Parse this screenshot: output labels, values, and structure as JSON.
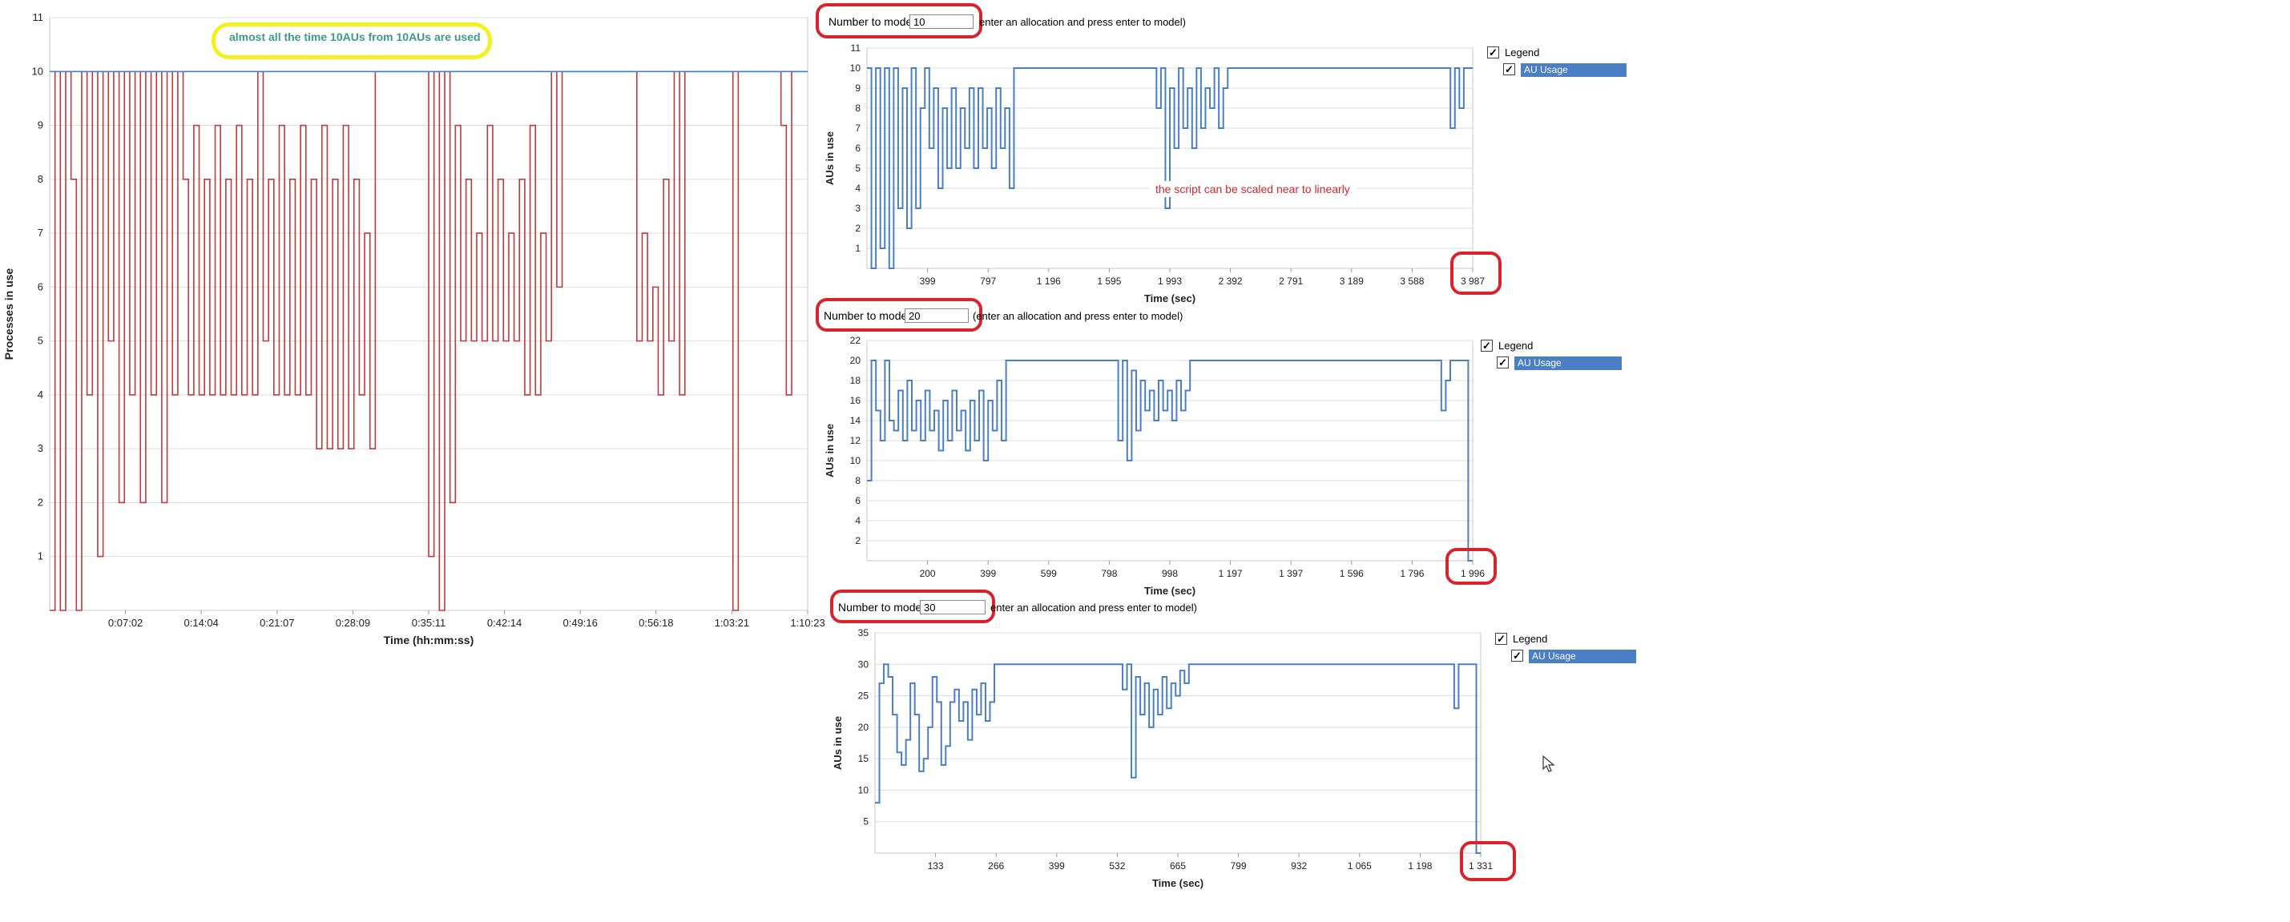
{
  "left_chart": {
    "annotation": "almost all the time 10AUs from 10AUs are used",
    "chart_data": {
      "type": "line",
      "xlabel": "Time (hh:mm:ss)",
      "ylabel": "Processes in use",
      "x_tick_labels": [
        "0:07:02",
        "0:14:04",
        "0:21:07",
        "0:28:09",
        "0:35:11",
        "0:42:14",
        "0:49:16",
        "0:56:18",
        "1:03:21",
        "1:10:23"
      ],
      "y_ticks": [
        1,
        2,
        3,
        4,
        5,
        6,
        7,
        8,
        9,
        10,
        11
      ],
      "ylim": [
        0,
        11
      ],
      "series": [
        {
          "color": "#c0393b",
          "values": [
            0,
            10,
            0,
            10,
            8,
            0,
            10,
            4,
            10,
            1,
            10,
            5,
            10,
            2,
            10,
            4,
            10,
            2,
            10,
            4,
            10,
            2,
            10,
            4,
            10,
            8,
            4,
            9,
            4,
            8,
            4,
            9,
            4,
            8,
            4,
            9,
            4,
            8,
            4,
            10,
            5,
            8,
            4,
            9,
            4,
            8,
            4,
            9,
            4,
            8,
            3,
            9,
            3,
            8,
            3,
            9,
            3,
            8,
            4,
            7,
            3,
            10,
            10,
            10,
            10,
            10,
            10,
            10,
            10,
            10,
            10,
            1,
            10,
            0,
            10,
            2,
            9,
            5,
            8,
            5,
            7,
            5,
            9,
            5,
            8,
            5,
            7,
            5,
            8,
            4,
            9,
            4,
            7,
            5,
            10,
            6,
            10,
            10,
            10,
            10,
            10,
            10,
            10,
            10,
            10,
            10,
            10,
            10,
            10,
            10,
            5,
            7,
            5,
            6,
            4,
            8,
            5,
            10,
            4,
            10,
            10,
            10,
            10,
            10,
            10,
            10,
            10,
            10,
            0,
            10,
            10,
            10,
            10,
            10,
            10,
            10,
            10,
            9,
            4,
            10,
            10,
            10
          ]
        },
        {
          "color": "#4a7fc6",
          "values": [
            10,
            10,
            10,
            10,
            10,
            10,
            10,
            10,
            10,
            10,
            10,
            10,
            10,
            10,
            10,
            10,
            10,
            10,
            10,
            10,
            10,
            10,
            10,
            10,
            10,
            10,
            10,
            10,
            10,
            10,
            10,
            10,
            10,
            10,
            10,
            10,
            10,
            10,
            10,
            10,
            10,
            10,
            10,
            10,
            10,
            10,
            10,
            10,
            10,
            10,
            10,
            10,
            10,
            10,
            10,
            10,
            10,
            10,
            10,
            10,
            10,
            10,
            10,
            10,
            10,
            10,
            10,
            10,
            10,
            10,
            10,
            10,
            10,
            10,
            10,
            10,
            10,
            10,
            10,
            10,
            10,
            10,
            10,
            10,
            10,
            10,
            10,
            10,
            10,
            10,
            10,
            10,
            10,
            10,
            10,
            10,
            10,
            10,
            10,
            10,
            10,
            10,
            10,
            10,
            10,
            10,
            10,
            10,
            10,
            10,
            10,
            10,
            10,
            10,
            10,
            10,
            10,
            10,
            10,
            10,
            10,
            10,
            10,
            10,
            10,
            10,
            10,
            10,
            10,
            10,
            10,
            10,
            10,
            10,
            10,
            10,
            10,
            10,
            10,
            10,
            10,
            10
          ]
        }
      ]
    }
  },
  "panels": [
    {
      "number_label": "Number to model:",
      "number_value": "10",
      "hint": "enter an allocation and press enter to model)",
      "legend_title": "Legend",
      "legend_item": "AU Usage",
      "annotation": "the script can be scaled near to linearly",
      "chart_data": {
        "type": "line",
        "xlabel": "Time (sec)",
        "ylabel": "AUs in use",
        "x_tick_labels": [
          "399",
          "797",
          "1 196",
          "1 595",
          "1 993",
          "2 392",
          "2 791",
          "3 189",
          "3 588",
          "3 987"
        ],
        "y_ticks": [
          1,
          2,
          3,
          4,
          5,
          6,
          7,
          8,
          9,
          10,
          11
        ],
        "ylim": [
          0,
          11
        ],
        "series": [
          {
            "name": "AU Usage",
            "color": "#4a7fc6",
            "values": [
              10,
              0,
              10,
              1,
              10,
              0,
              10,
              3,
              9,
              2,
              10,
              3,
              8,
              10,
              6,
              9,
              4,
              8,
              5,
              9,
              5,
              8,
              6,
              9,
              5,
              9,
              6,
              8,
              5,
              9,
              6,
              8,
              4,
              10,
              10,
              10,
              10,
              10,
              10,
              10,
              10,
              10,
              10,
              10,
              10,
              10,
              10,
              10,
              10,
              10,
              10,
              10,
              10,
              10,
              10,
              10,
              10,
              10,
              10,
              10,
              10,
              10,
              10,
              10,
              10,
              8,
              10,
              3,
              9,
              6,
              10,
              7,
              9,
              6,
              10,
              7,
              9,
              8,
              10,
              7,
              9,
              10,
              10,
              10,
              10,
              10,
              10,
              10,
              10,
              10,
              10,
              10,
              10,
              10,
              10,
              10,
              10,
              10,
              10,
              10,
              10,
              10,
              10,
              10,
              10,
              10,
              10,
              10,
              10,
              10,
              10,
              10,
              10,
              10,
              10,
              10,
              10,
              10,
              10,
              10,
              10,
              10,
              10,
              10,
              10,
              10,
              10,
              10,
              10,
              10,
              10,
              7,
              10,
              8,
              10,
              10
            ]
          }
        ]
      }
    },
    {
      "number_label": "Number to model:",
      "number_value": "20",
      "hint": "(enter an allocation and press enter to model)",
      "legend_title": "Legend",
      "legend_item": "AU Usage",
      "chart_data": {
        "type": "line",
        "xlabel": "Time (sec)",
        "ylabel": "AUs in use",
        "x_tick_labels": [
          "200",
          "399",
          "599",
          "798",
          "998",
          "1 197",
          "1 397",
          "1 596",
          "1 796",
          "1 996"
        ],
        "y_ticks": [
          2,
          4,
          6,
          8,
          10,
          12,
          14,
          16,
          18,
          20,
          22
        ],
        "ylim": [
          0,
          22
        ],
        "series": [
          {
            "name": "AU Usage",
            "color": "#4a7fc6",
            "values": [
              8,
              20,
              15,
              12,
              20,
              14,
              13,
              17,
              12,
              18,
              13,
              16,
              12,
              17,
              13,
              15,
              11,
              16,
              12,
              17,
              13,
              15,
              11,
              16,
              12,
              17,
              10,
              16,
              13,
              18,
              12,
              20,
              20,
              20,
              20,
              20,
              20,
              20,
              20,
              20,
              20,
              20,
              20,
              20,
              20,
              20,
              20,
              20,
              20,
              20,
              20,
              20,
              20,
              20,
              20,
              20,
              12,
              20,
              10,
              19,
              13,
              18,
              15,
              17,
              14,
              18,
              15,
              17,
              14,
              18,
              15,
              17,
              20,
              20,
              20,
              20,
              20,
              20,
              20,
              20,
              20,
              20,
              20,
              20,
              20,
              20,
              20,
              20,
              20,
              20,
              20,
              20,
              20,
              20,
              20,
              20,
              20,
              20,
              20,
              20,
              20,
              20,
              20,
              20,
              20,
              20,
              20,
              20,
              20,
              20,
              20,
              20,
              20,
              20,
              20,
              20,
              20,
              20,
              20,
              20,
              20,
              20,
              20,
              20,
              20,
              20,
              20,
              20,
              15,
              18,
              20,
              20,
              20,
              20,
              0
            ]
          }
        ]
      }
    },
    {
      "number_label": "Number to model:",
      "number_value": "30",
      "hint": "enter an allocation and press enter to model)",
      "legend_title": "Legend",
      "legend_item": "AU Usage",
      "chart_data": {
        "type": "line",
        "xlabel": "Time (sec)",
        "ylabel": "AUs in use",
        "x_tick_labels": [
          "133",
          "266",
          "399",
          "532",
          "665",
          "799",
          "932",
          "1 065",
          "1 198",
          "1 331"
        ],
        "y_ticks": [
          5,
          10,
          15,
          20,
          25,
          30,
          35
        ],
        "ylim": [
          0,
          35
        ],
        "series": [
          {
            "name": "AU Usage",
            "color": "#4a7fc6",
            "values": [
              8,
              27,
              30,
              28,
              22,
              16,
              14,
              18,
              27,
              22,
              13,
              15,
              20,
              28,
              24,
              14,
              17,
              24,
              26,
              21,
              24,
              18,
              26,
              22,
              27,
              21,
              24,
              30,
              30,
              30,
              30,
              30,
              30,
              30,
              30,
              30,
              30,
              30,
              30,
              30,
              30,
              30,
              30,
              30,
              30,
              30,
              30,
              30,
              30,
              30,
              30,
              30,
              30,
              30,
              30,
              30,
              26,
              30,
              12,
              28,
              22,
              27,
              20,
              26,
              22,
              28,
              23,
              27,
              25,
              29,
              27,
              30,
              30,
              30,
              30,
              30,
              30,
              30,
              30,
              30,
              30,
              30,
              30,
              30,
              30,
              30,
              30,
              30,
              30,
              30,
              30,
              30,
              30,
              30,
              30,
              30,
              30,
              30,
              30,
              30,
              30,
              30,
              30,
              30,
              30,
              30,
              30,
              30,
              30,
              30,
              30,
              30,
              30,
              30,
              30,
              30,
              30,
              30,
              30,
              30,
              30,
              30,
              30,
              30,
              30,
              30,
              30,
              30,
              30,
              30,
              30,
              23,
              30,
              30,
              30,
              30,
              0
            ]
          }
        ]
      }
    }
  ]
}
